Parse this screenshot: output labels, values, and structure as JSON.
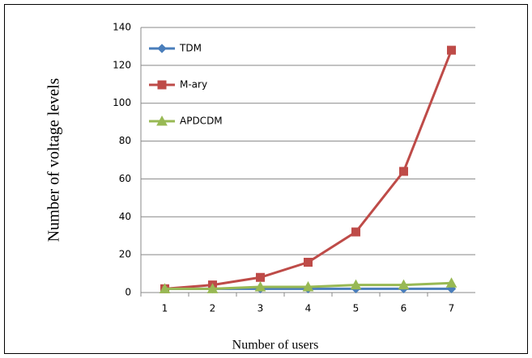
{
  "chart_data": {
    "type": "line",
    "x_label": "Number of users",
    "y_label": "Number of voltage levels",
    "categories": [
      "1",
      "2",
      "3",
      "4",
      "5",
      "6",
      "7"
    ],
    "series": [
      {
        "name": "TDM",
        "color": "#4a7ebb",
        "marker": "diamond",
        "values": [
          2,
          2,
          2,
          2,
          2,
          2,
          2
        ]
      },
      {
        "name": "M-ary",
        "color": "#be4b48",
        "marker": "square",
        "values": [
          2,
          4,
          8,
          16,
          32,
          64,
          128
        ]
      },
      {
        "name": "APDCDM",
        "color": "#98b954",
        "marker": "triangle",
        "values": [
          2,
          2,
          3,
          3,
          4,
          4,
          5
        ]
      }
    ],
    "ylim": [
      0,
      140
    ],
    "yticks": [
      0,
      20,
      40,
      60,
      80,
      100,
      120,
      140
    ],
    "grid": true,
    "legend": "top-left"
  }
}
